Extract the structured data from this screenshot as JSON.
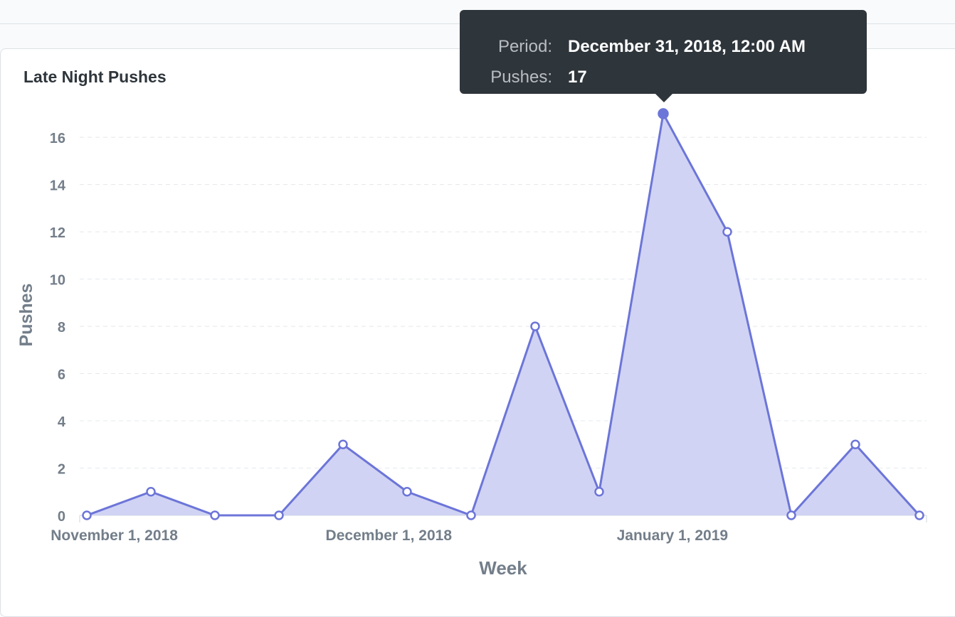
{
  "chart_data": {
    "type": "area",
    "title": "Late Night Pushes",
    "xlabel": "Week",
    "ylabel": "Pushes",
    "ylim": [
      0,
      17
    ],
    "yticks": [
      "0",
      "2",
      "4",
      "6",
      "8",
      "10",
      "12",
      "14",
      "16"
    ],
    "xtick_labels": [
      "November 1, 2018",
      "December 1, 2018",
      "January 1, 2019"
    ],
    "x": [
      "2018-10-29",
      "2018-11-05",
      "2018-11-12",
      "2018-11-19",
      "2018-11-26",
      "2018-12-03",
      "2018-12-10",
      "2018-12-17",
      "2018-12-24",
      "2018-12-31",
      "2019-01-07",
      "2019-01-14",
      "2019-01-21",
      "2019-01-28"
    ],
    "values": [
      0,
      1,
      0,
      0,
      3,
      1,
      0,
      8,
      1,
      17,
      12,
      0,
      3,
      0
    ],
    "highlighted_index": 9,
    "colors": {
      "series": "#6c75d8",
      "fill": "#d0d3f3",
      "grid": "#e6e8eb",
      "axis_text": "#737e8a"
    },
    "grid": "horizontal dashed",
    "tooltip": {
      "period_label": "Period:",
      "period_value": "December 31, 2018, 12:00 AM",
      "pushes_label": "Pushes:",
      "pushes_value": "17"
    }
  }
}
